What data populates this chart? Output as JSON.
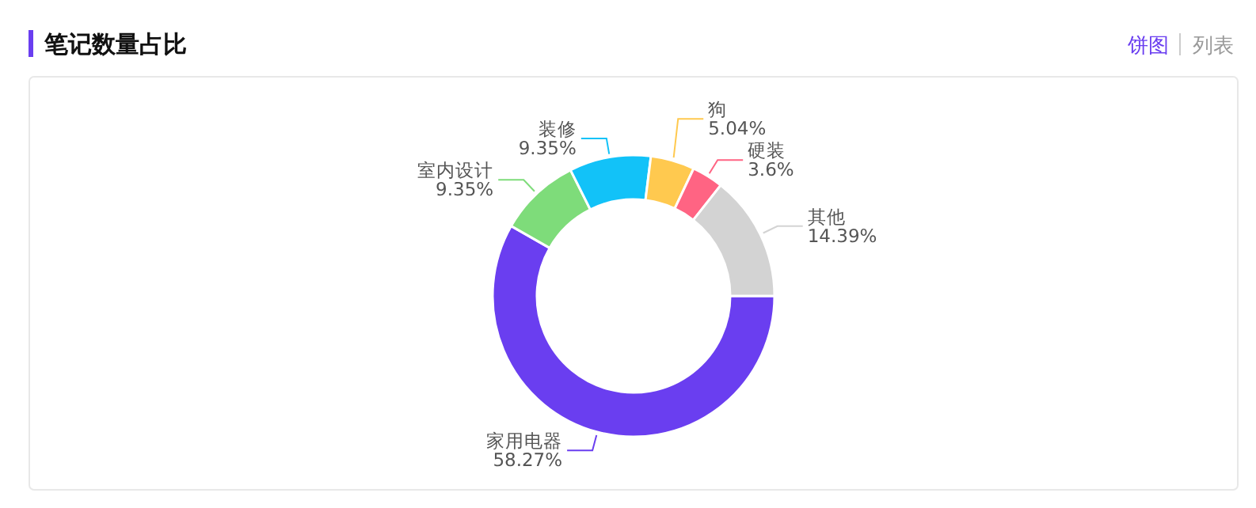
{
  "chart_data": {
    "type": "donut",
    "title": "笔记数量占比",
    "categories": [
      "家用电器",
      "室内设计",
      "装修",
      "狗",
      "硬装",
      "其他"
    ],
    "values": [
      58.27,
      9.35,
      9.35,
      5.04,
      3.6,
      14.39
    ],
    "value_labels": [
      "58.27%",
      "9.35%",
      "9.35%",
      "5.04%",
      "3.6%",
      "14.39%"
    ],
    "colors": [
      "#6a3ef0",
      "#7edc7a",
      "#12c2f8",
      "#ffc94f",
      "#ff6483",
      "#d3d3d3"
    ],
    "annotations": [
      "饼图",
      "列表"
    ],
    "legend": false
  }
}
